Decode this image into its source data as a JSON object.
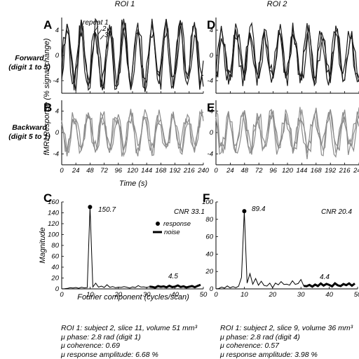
{
  "figure": {
    "col_titles": [
      "ROI 1",
      "ROI 2"
    ],
    "row_labels": [
      {
        "line1": "Forward",
        "line2": "(digit 1 to 5)"
      },
      {
        "line1": "Backward",
        "line2": "(digit 5 to 1)"
      }
    ],
    "panel_letters": [
      "A",
      "B",
      "C",
      "D",
      "E",
      "F"
    ],
    "ts_ylabel": "fMRI Response (% signal change)",
    "ts_xlabel": "Time (s)",
    "spec_ylabel": "Magnitude",
    "spec_xlabel": "Fourier component (cycles/scan)",
    "repeat_labels": [
      "repeat 1",
      "2",
      "3"
    ],
    "legend": {
      "response": "response",
      "noise": "noise"
    },
    "colors": {
      "forward": "#1a1a1a",
      "backward": "#8c8c8c",
      "axis": "#000000"
    }
  },
  "captions": [
    [
      "ROI 1: subject 2, slice 11, volume 51 mm³",
      "μ phase: 2.8 rad (digit 1)",
      "μ coherence: 0.69",
      "μ response amplitude: 6.68 %"
    ],
    [
      "ROI 1: subject 2, slice 9, volume 36 mm³",
      "μ phase: 2.8 rad (digit 4)",
      "μ coherence: 0.57",
      "μ response amplitude: 3.98 %"
    ]
  ],
  "chart_data": [
    {
      "panel": "A",
      "type": "line",
      "title": "ROI 1",
      "series_names": [
        "repeat 1",
        "2",
        "3"
      ],
      "x_ticks": [
        0,
        24,
        48,
        72,
        96,
        120,
        144,
        168,
        192,
        216,
        240
      ],
      "xlim": [
        0,
        240
      ],
      "y_ticks": [
        -4,
        0,
        4
      ],
      "ylim": [
        -6,
        6
      ],
      "period_s": 24,
      "amplitude_pct": 4.5,
      "phase_offset_s": 3
    },
    {
      "panel": "B",
      "type": "line",
      "series_names": [
        "repeat 1",
        "2",
        "3"
      ],
      "x_ticks": [
        0,
        24,
        48,
        72,
        96,
        120,
        144,
        168,
        192,
        216,
        240
      ],
      "xlim": [
        0,
        240
      ],
      "y_ticks": [
        -4,
        0,
        4
      ],
      "ylim": [
        -6,
        6
      ],
      "period_s": 24,
      "amplitude_pct": 3.2,
      "phase_offset_s": 15
    },
    {
      "panel": "D",
      "type": "line",
      "title": "ROI 2",
      "series_names": [
        "repeat 1",
        "2",
        "3"
      ],
      "x_ticks": [
        0,
        24,
        48,
        72,
        96,
        120,
        144,
        168,
        192,
        216,
        240
      ],
      "xlim": [
        0,
        240
      ],
      "y_ticks": [
        -4,
        0,
        4
      ],
      "ylim": [
        -6,
        6
      ],
      "period_s": 24,
      "amplitude_pct": 3.8,
      "phase_offset_s": 4
    },
    {
      "panel": "E",
      "type": "line",
      "series_names": [
        "repeat 1",
        "2",
        "3"
      ],
      "x_ticks": [
        0,
        24,
        48,
        72,
        96,
        120,
        144,
        168,
        192,
        216,
        240
      ],
      "xlim": [
        0,
        240
      ],
      "y_ticks": [
        -4,
        0,
        4
      ],
      "ylim": [
        -6,
        6
      ],
      "period_s": 24,
      "amplitude_pct": 3.4,
      "phase_offset_s": 16
    },
    {
      "panel": "C",
      "type": "line",
      "xlabel": "Fourier component (cycles/scan)",
      "ylabel": "Magnitude",
      "x_ticks": [
        0,
        10,
        20,
        30,
        40,
        50
      ],
      "xlim": [
        0,
        50
      ],
      "y_ticks": [
        0,
        20,
        40,
        60,
        80,
        100,
        120,
        140,
        160
      ],
      "ylim": [
        0,
        160
      ],
      "peak": {
        "x": 10,
        "y": 150.7,
        "label": "150.7"
      },
      "noise_level": 4.5,
      "noise_label": "4.5",
      "cnr_label": "CNR 33.1",
      "values": [
        0,
        0.3,
        0.9,
        2.2,
        1.5,
        2.6,
        1.1,
        3.1,
        1.8,
        2.4,
        150.7,
        3.5,
        10.6,
        3.2,
        5.1,
        2.6,
        7.6,
        2.8,
        4.4,
        2.0,
        3.2,
        2.7,
        4.1,
        3.1,
        1.5,
        3.6,
        2.4,
        6.1,
        3.3,
        3.7,
        2.5,
        4.1,
        3.6,
        2.3,
        5.2,
        3.8,
        4.6,
        2.9,
        5.7,
        3.4,
        4.1,
        6.3,
        3.5,
        4.8,
        2.7,
        4.0,
        5.2,
        3.1,
        5.6,
        7.5
      ],
      "noise_start_index": 31
    },
    {
      "panel": "F",
      "type": "line",
      "xlabel": "Fourier component (cycles/scan)",
      "ylabel": "Magnitude",
      "x_ticks": [
        0,
        10,
        20,
        30,
        40,
        50
      ],
      "xlim": [
        0,
        50
      ],
      "y_ticks": [
        0,
        20,
        40,
        60,
        80,
        100
      ],
      "ylim": [
        0,
        100
      ],
      "peak": {
        "x": 10,
        "y": 89.4,
        "label": "89.4"
      },
      "noise_level": 4.4,
      "noise_label": "4.4",
      "cnr_label": "CNR 20.4",
      "values": [
        0,
        0.4,
        2.1,
        0.9,
        3.4,
        1.2,
        2.6,
        1.4,
        3.1,
        13.2,
        89.4,
        6.7,
        17.6,
        5.3,
        11.9,
        4.2,
        8.8,
        3.9,
        3.2,
        6.6,
        1.3,
        6.7,
        4.7,
        8.4,
        5.1,
        5.4,
        4.3,
        9.3,
        5.2,
        6.1,
        10.8,
        3.4,
        3.1,
        4.6,
        2.6,
        4.9,
        3.3,
        6.2,
        3.8,
        5.7,
        4.5,
        2.9,
        6.4,
        4.1,
        3.2,
        5.6,
        4.3,
        6.3,
        3.6,
        6.2
      ],
      "noise_start_index": 31
    }
  ]
}
